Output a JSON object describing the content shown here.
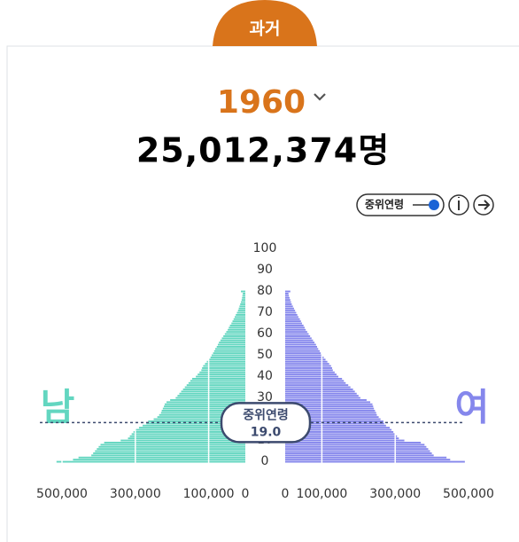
{
  "tab": "과거",
  "year": 1960,
  "total": "25,012,374명",
  "toggle_label": "중위연령",
  "chart_data": {
    "type": "pyramid",
    "left_label": "남",
    "right_label": "여",
    "series": [
      {
        "name": "남",
        "color": "#63d6c0",
        "values": [
          515000,
          470000,
          455000,
          420000,
          415000,
          410000,
          405000,
          400000,
          395000,
          385000,
          340000,
          320000,
          315000,
          310000,
          305000,
          300000,
          290000,
          280000,
          270000,
          265000,
          250000,
          240000,
          235000,
          230000,
          228000,
          225000,
          222000,
          220000,
          215000,
          205000,
          190000,
          185000,
          180000,
          175000,
          170000,
          165000,
          160000,
          155000,
          150000,
          145000,
          135000,
          130000,
          125000,
          120000,
          118000,
          115000,
          110000,
          105000,
          100000,
          95000,
          92000,
          88000,
          85000,
          82000,
          78000,
          75000,
          72000,
          68000,
          64000,
          60000,
          56000,
          52000,
          48000,
          45000,
          42000,
          38000,
          35000,
          32000,
          29000,
          26000,
          23000,
          20000,
          18000,
          16000,
          14000,
          12000,
          10000,
          9000,
          8000,
          7000,
          12000
        ]
      },
      {
        "name": "여",
        "color": "#8587ec",
        "values": [
          490000,
          450000,
          440000,
          405000,
          400000,
          395000,
          390000,
          385000,
          380000,
          370000,
          325000,
          310000,
          305000,
          300000,
          295000,
          290000,
          285000,
          275000,
          270000,
          268000,
          260000,
          255000,
          250000,
          248000,
          245000,
          242000,
          240000,
          238000,
          232000,
          222000,
          205000,
          200000,
          195000,
          190000,
          185000,
          178000,
          172000,
          165000,
          160000,
          155000,
          145000,
          140000,
          135000,
          130000,
          128000,
          125000,
          120000,
          115000,
          110000,
          105000,
          100000,
          97000,
          94000,
          90000,
          87000,
          84000,
          80000,
          76000,
          72000,
          68000,
          64000,
          60000,
          56000,
          53000,
          50000,
          46000,
          43000,
          40000,
          36000,
          33000,
          30000,
          27000,
          24000,
          21000,
          18000,
          16000,
          14000,
          12000,
          10000,
          9000,
          14000
        ]
      }
    ],
    "xlim": [
      0,
      500000
    ],
    "xticks": [
      {
        "value": 500000,
        "label": "500,000"
      },
      {
        "value": 300000,
        "label": "300,000"
      },
      {
        "value": 100000,
        "label": "100,000"
      },
      0
    ],
    "ylim": [
      0,
      100
    ],
    "yticks": [
      0,
      10,
      20,
      30,
      40,
      50,
      60,
      70,
      80,
      90,
      100
    ],
    "median_label": "중위연령",
    "median_age": 19,
    "median_age_label": "19.0"
  }
}
